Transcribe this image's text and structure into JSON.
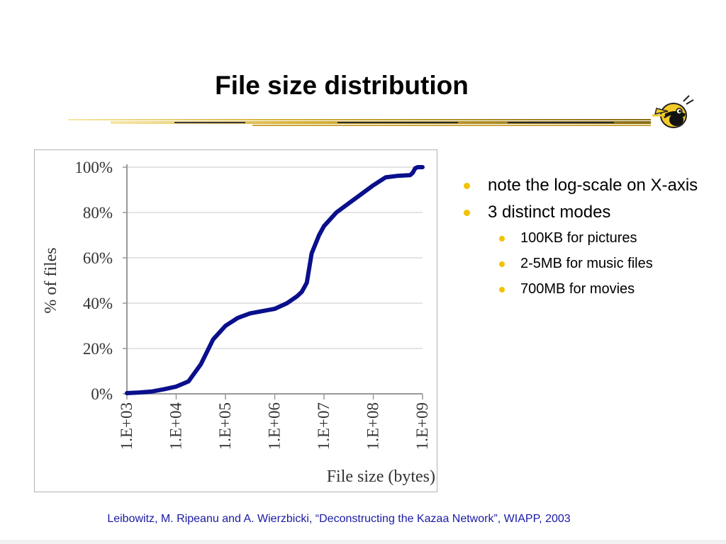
{
  "slide": {
    "title": "File size distribution",
    "bullets": [
      {
        "text": "note the log-scale on X-axis",
        "level": 1
      },
      {
        "text": "3 distinct modes",
        "level": 1
      },
      {
        "text": "100KB for pictures",
        "level": 2
      },
      {
        "text": "2-5MB for music files",
        "level": 2
      },
      {
        "text": "700MB for movies",
        "level": 2
      }
    ],
    "footer": "Leibowitz, M. Ripeanu and A. Wierzbicki, “Deconstructing the Kazaa Network”, WIAPP, 2003",
    "accent_color": "#f2c200",
    "footer_color": "#1a1aa6",
    "logo_icon": "yellow-jacket-bee-icon"
  },
  "chart_data": {
    "type": "line",
    "xlabel": "File size (bytes)",
    "ylabel": "% of files",
    "x_scale": "log",
    "xlim": [
      1000,
      1000000000
    ],
    "ylim": [
      0,
      100
    ],
    "x_ticks": [
      "1.E+03",
      "1.E+04",
      "1.E+05",
      "1.E+06",
      "1.E+07",
      "1.E+08",
      "1.E+09"
    ],
    "y_ticks": [
      "0%",
      "20%",
      "40%",
      "60%",
      "80%",
      "100%"
    ],
    "grid": "horizontal",
    "series_color": "#0a0f8c",
    "series": [
      {
        "x": [
          1000,
          1780,
          3160,
          5620,
          10000,
          17800,
          31600,
          56200,
          100000,
          178000,
          316000,
          562000,
          1000000,
          1780000,
          2820000,
          3550000,
          4470000,
          5620000,
          7940000,
          10000000,
          17800000,
          31600000,
          56200000,
          100000000,
          178000000,
          316000000,
          562000000,
          631000000,
          708000000,
          794000000,
          1000000000
        ],
        "y": [
          0.3,
          0.6,
          1.0,
          2.0,
          3.2,
          5.5,
          13,
          24,
          30,
          33.5,
          35.5,
          36.5,
          37.5,
          40,
          43,
          45,
          49,
          62,
          70,
          74,
          80,
          84,
          88,
          92,
          95.5,
          96.2,
          96.5,
          97.5,
          99.5,
          100,
          100
        ]
      }
    ]
  }
}
